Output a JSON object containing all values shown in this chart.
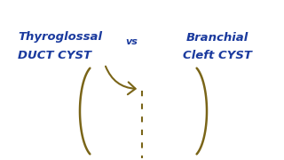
{
  "bg_color": "#ffffff",
  "text_color": "#1a3a9e",
  "curve_color": "#7a6518",
  "title_left_line1": "Thyroglossal",
  "title_left_line2": "DUCT CYST",
  "vs_text": "vs",
  "title_right_line1": "Branchial",
  "title_right_line2": "Cleft CYST",
  "figsize": [
    3.2,
    1.8
  ],
  "dpi": 100
}
